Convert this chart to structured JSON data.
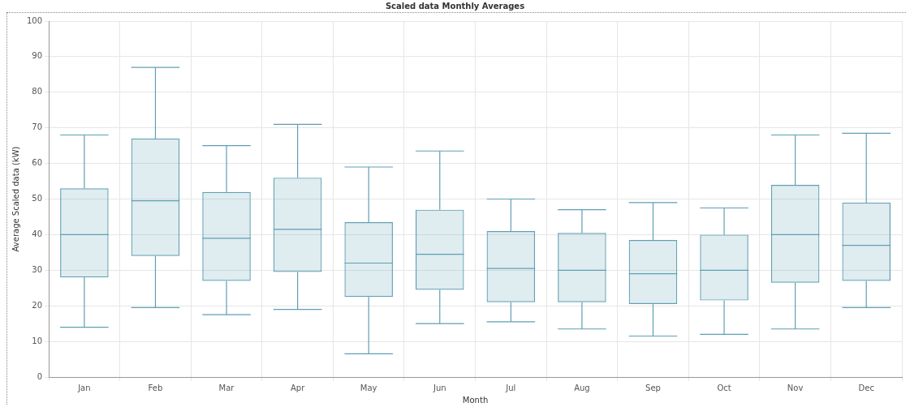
{
  "chart_data": {
    "type": "box",
    "title": "Scaled data Monthly Averages",
    "xlabel": "Month",
    "ylabel": "Average Scaled data (kW)",
    "categories": [
      "Jan",
      "Feb",
      "Mar",
      "Apr",
      "May",
      "Jun",
      "Jul",
      "Aug",
      "Sep",
      "Oct",
      "Nov",
      "Dec"
    ],
    "color": "#5f9fb3",
    "boxes": [
      {
        "low": 14,
        "q1": 28,
        "median": 40,
        "q3": 53,
        "high": 68
      },
      {
        "low": 19.5,
        "q1": 34,
        "median": 49.5,
        "q3": 67,
        "high": 87
      },
      {
        "low": 17.5,
        "q1": 27,
        "median": 39,
        "q3": 52,
        "high": 65
      },
      {
        "low": 19,
        "q1": 29.5,
        "median": 41.5,
        "q3": 56,
        "high": 71
      },
      {
        "low": 6.5,
        "q1": 22.5,
        "median": 32,
        "q3": 43.5,
        "high": 59
      },
      {
        "low": 15,
        "q1": 24.5,
        "median": 34.5,
        "q3": 47,
        "high": 63.5
      },
      {
        "low": 15.5,
        "q1": 21,
        "median": 30.5,
        "q3": 41,
        "high": 50
      },
      {
        "low": 13.5,
        "q1": 21,
        "median": 30,
        "q3": 40.5,
        "high": 47
      },
      {
        "low": 11.5,
        "q1": 20.5,
        "median": 29,
        "q3": 38.5,
        "high": 49
      },
      {
        "low": 12,
        "q1": 21.5,
        "median": 30,
        "q3": 40,
        "high": 47.5
      },
      {
        "low": 13.5,
        "q1": 26.5,
        "median": 40,
        "q3": 54,
        "high": 68
      },
      {
        "low": 19.5,
        "q1": 27,
        "median": 37,
        "q3": 49,
        "high": 68.5
      }
    ],
    "ylim": [
      0,
      100
    ],
    "yticks": [
      0,
      10,
      20,
      30,
      40,
      50,
      60,
      70,
      80,
      90,
      100
    ],
    "grid": true
  }
}
